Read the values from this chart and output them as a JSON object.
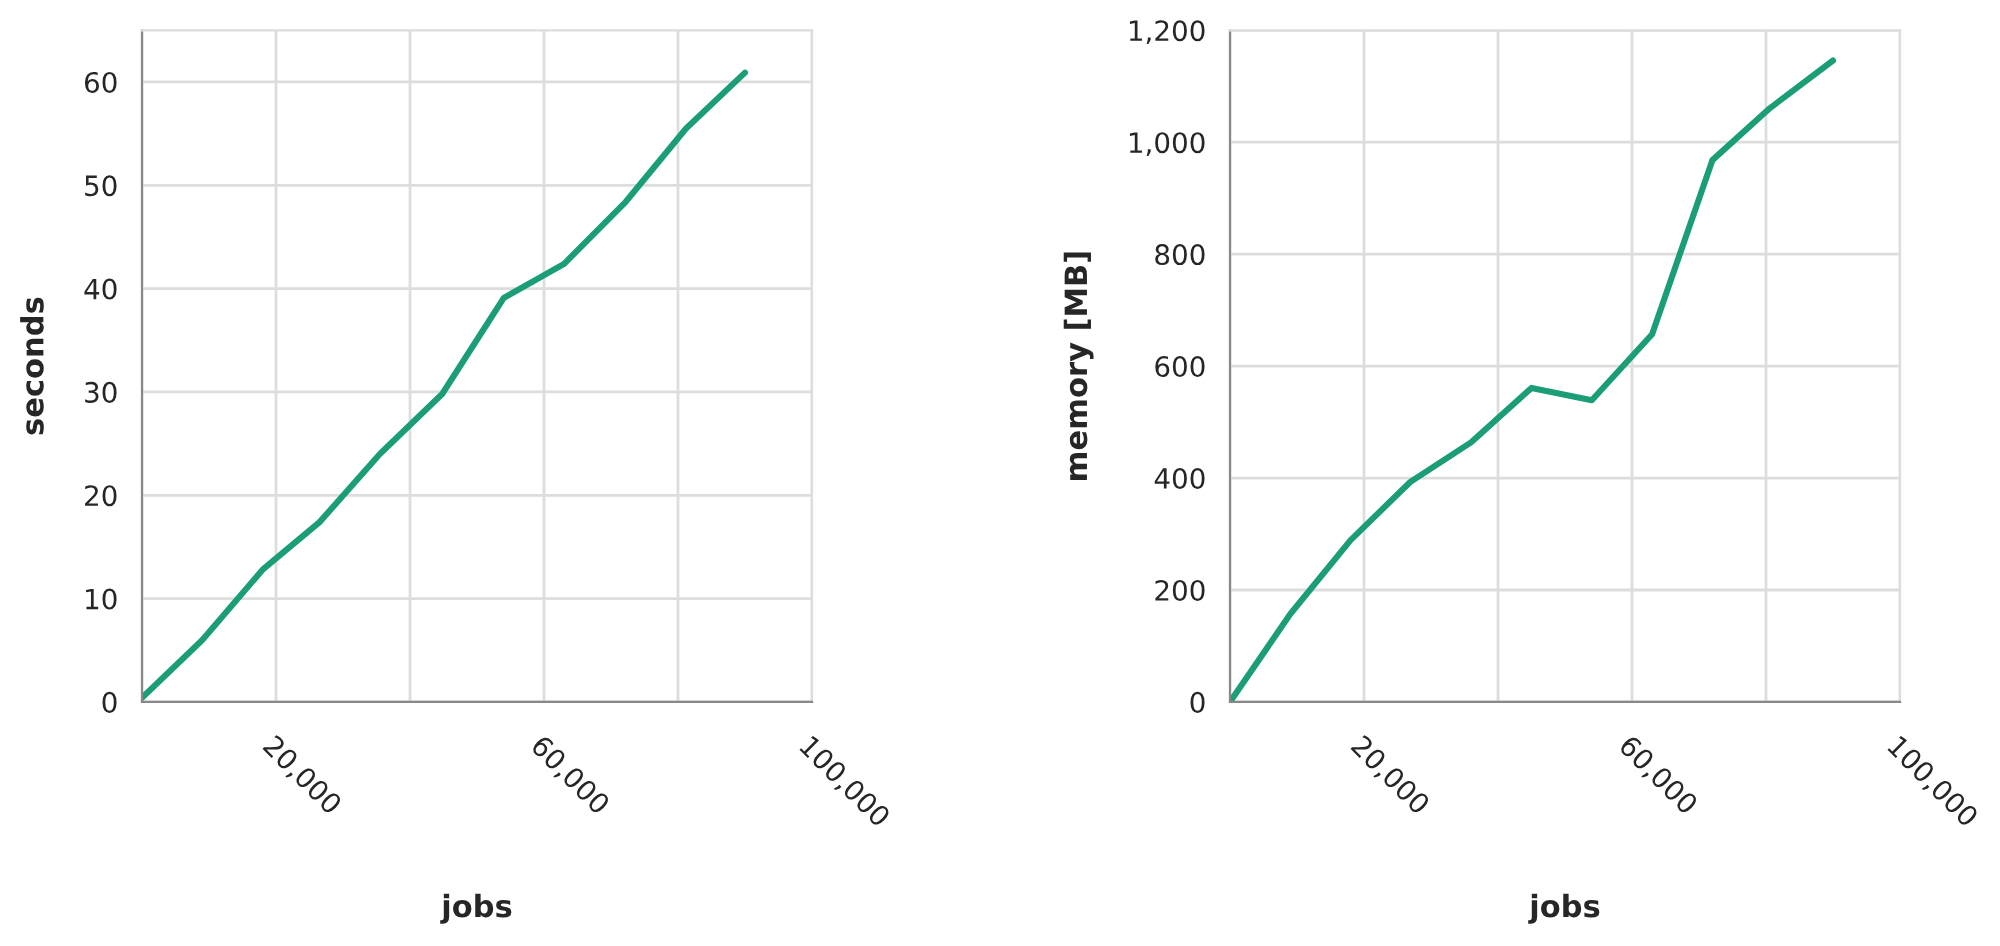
{
  "chart_data": [
    {
      "type": "line",
      "xlabel": "jobs",
      "ylabel": "seconds",
      "grid": true,
      "xlim": [
        0,
        100000
      ],
      "xticks": [
        {
          "value": 0,
          "label": null
        },
        {
          "value": 20000,
          "label": "20,000"
        },
        {
          "value": 40000,
          "label": null
        },
        {
          "value": 60000,
          "label": "60,000"
        },
        {
          "value": 80000,
          "label": null
        },
        {
          "value": 100000,
          "label": "100,000"
        }
      ],
      "ylim": [
        0,
        65
      ],
      "yticks": [
        0,
        10,
        20,
        30,
        40,
        50,
        60
      ],
      "series": [
        {
          "color": "#1b9e77",
          "x": [
            0,
            9000,
            18000,
            26500,
            35500,
            44800,
            54000,
            63000,
            72200,
            81200,
            90000
          ],
          "values": [
            0.4,
            6.0,
            12.8,
            17.4,
            24.0,
            29.8,
            39.1,
            42.4,
            48.4,
            55.5,
            60.9
          ]
        }
      ]
    },
    {
      "type": "line",
      "xlabel": "jobs",
      "ylabel": "memory [MB]",
      "grid": true,
      "xlim": [
        0,
        100000
      ],
      "xticks": [
        {
          "value": 0,
          "label": null
        },
        {
          "value": 20000,
          "label": "20,000"
        },
        {
          "value": 40000,
          "label": null
        },
        {
          "value": 60000,
          "label": "60,000"
        },
        {
          "value": 80000,
          "label": null
        },
        {
          "value": 100000,
          "label": "100,000"
        }
      ],
      "ylim": [
        0,
        1200
      ],
      "yticks": [
        0,
        200,
        400,
        600,
        800,
        {
          "value": 1000,
          "label": "1,000"
        },
        {
          "value": 1200,
          "label": "1,200"
        }
      ],
      "series": [
        {
          "color": "#1b9e77",
          "x": [
            0,
            9000,
            18000,
            26900,
            36000,
            45000,
            54000,
            63000,
            72000,
            80600,
            90000
          ],
          "values": [
            0,
            157,
            289,
            393,
            464,
            561,
            539,
            657,
            968,
            1061,
            1146
          ]
        }
      ]
    }
  ]
}
